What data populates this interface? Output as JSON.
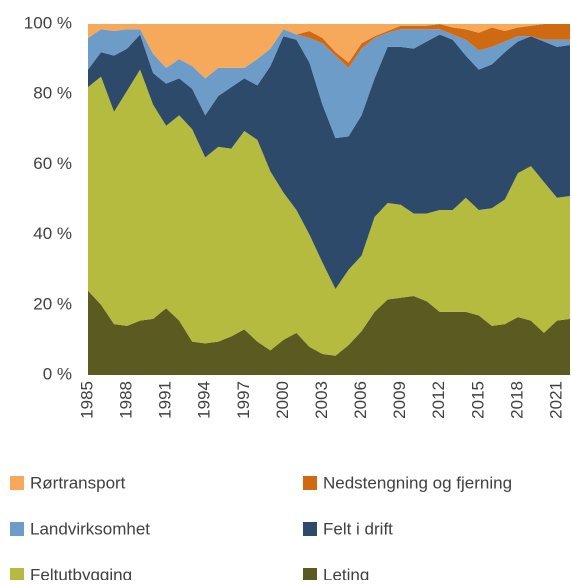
{
  "chart_data": {
    "type": "stacked_area",
    "categories": [
      "1985",
      null,
      null,
      "1988",
      null,
      null,
      "1991",
      null,
      null,
      "1994",
      null,
      null,
      "1997",
      null,
      null,
      "2000",
      null,
      null,
      "2003",
      null,
      null,
      "2006",
      null,
      null,
      "2009",
      null,
      null,
      "2012",
      null,
      null,
      "2015",
      null,
      null,
      "2018",
      null,
      null,
      "2021",
      null
    ],
    "series": [
      {
        "name": "Leting",
        "color": "#5b5a20",
        "values": [
          24,
          20,
          14.5,
          14,
          15.5,
          16,
          19,
          15.5,
          9.5,
          9,
          9.5,
          11,
          13,
          9.5,
          7,
          10,
          12,
          8,
          6,
          5.5,
          8.5,
          12.5,
          18,
          21.5,
          22,
          22.5,
          21,
          18,
          18,
          18,
          17,
          14,
          14.5,
          16.5,
          15.5,
          12,
          15.5,
          16
        ]
      },
      {
        "name": "Feltutbygging",
        "color": "#b4bb3f",
        "values": [
          58,
          65,
          60.5,
          67,
          71.5,
          61,
          52,
          58.5,
          60.5,
          53,
          55.5,
          53.5,
          56.5,
          57.5,
          51,
          42,
          35,
          32,
          26,
          19,
          21.5,
          21.5,
          27,
          27.5,
          26.5,
          23.5,
          25,
          29,
          29,
          32.5,
          30,
          33.5,
          35.5,
          41,
          44,
          43,
          35,
          35
        ]
      },
      {
        "name": "Felt i drift",
        "color": "#2d4a6a",
        "values": [
          5,
          7,
          16,
          12,
          10,
          9,
          12,
          10.5,
          11.5,
          12,
          14.5,
          17.5,
          15,
          15.5,
          30,
          44.5,
          48.5,
          49,
          45,
          43,
          38,
          40,
          39.5,
          44.5,
          45,
          47,
          49,
          50,
          48.5,
          40.5,
          40,
          41,
          42,
          37.5,
          37,
          40,
          43,
          43
        ]
      },
      {
        "name": "Landvirksomhet",
        "color": "#6c9cc7",
        "values": [
          9,
          6.5,
          7,
          5.5,
          1.5,
          5.5,
          4.5,
          5.5,
          6.5,
          10.5,
          8,
          5.5,
          3,
          7.5,
          5,
          2,
          1.5,
          7,
          17.5,
          23.5,
          19.5,
          19,
          11.5,
          4,
          5,
          5.5,
          3.5,
          1.5,
          1.5,
          4.5,
          5.5,
          5,
          3,
          1.5,
          0,
          0.5,
          2,
          1.5
        ]
      },
      {
        "name": "Nedstengning og fjerning",
        "color": "#d06a12",
        "values": [
          0,
          0,
          0,
          0,
          0,
          0,
          0,
          0,
          0,
          0,
          0,
          0,
          0,
          0,
          0,
          0,
          0,
          2,
          1.5,
          1,
          1.5,
          1.5,
          0.5,
          0.5,
          1,
          1,
          1,
          1.5,
          2,
          3,
          5,
          5.5,
          3,
          2.5,
          3,
          4.5,
          4.5,
          4.5
        ]
      },
      {
        "name": "Rørtransport",
        "color": "#f6a95a",
        "values": [
          4,
          1.5,
          2,
          1.5,
          1.5,
          8.5,
          12.5,
          10,
          12,
          15.5,
          12.5,
          12.5,
          12.5,
          10,
          7,
          1.5,
          3,
          2,
          4,
          8,
          11,
          5.5,
          3.5,
          2,
          0.5,
          0.5,
          0.5,
          0,
          1,
          1.5,
          2.5,
          1,
          2,
          1,
          0.5,
          0,
          0,
          0
        ]
      }
    ],
    "ylim": [
      0,
      100
    ],
    "yticks": [
      {
        "value": 0,
        "label": "0 %"
      },
      {
        "value": 20,
        "label": "20 %"
      },
      {
        "value": 40,
        "label": "40 %"
      },
      {
        "value": 60,
        "label": "60 %"
      },
      {
        "value": 80,
        "label": "80 %"
      },
      {
        "value": 100,
        "label": "100 %"
      }
    ],
    "grid": false
  }
}
